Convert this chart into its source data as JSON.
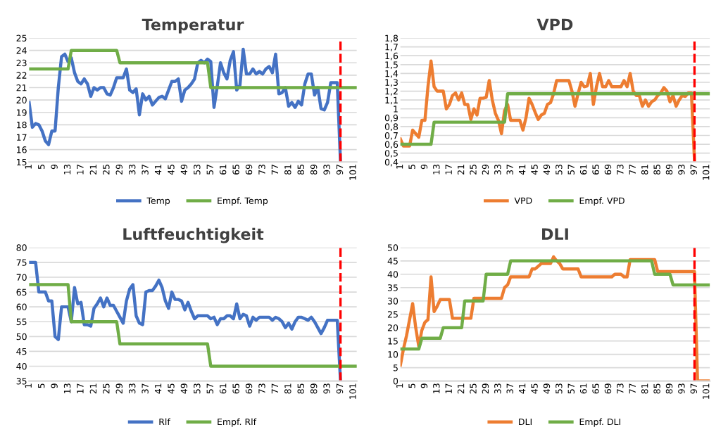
{
  "chart_data": [
    {
      "type": "line",
      "title": "Temperatur",
      "grid": "y",
      "legend": "bottom",
      "categories": [
        "1",
        null,
        null,
        null,
        "5",
        null,
        null,
        null,
        "9",
        null,
        null,
        null,
        "13",
        null,
        null,
        null,
        "17",
        null,
        null,
        null,
        "21",
        null,
        null,
        null,
        "25",
        null,
        null,
        null,
        "29",
        null,
        null,
        null,
        "33",
        null,
        null,
        null,
        "37",
        null,
        null,
        null,
        "41",
        null,
        null,
        null,
        "45",
        null,
        null,
        null,
        "49",
        null,
        null,
        null,
        "53",
        null,
        null,
        null,
        "57",
        null,
        null,
        null,
        "61",
        null,
        null,
        null,
        "65",
        null,
        null,
        null,
        "69",
        null,
        null,
        null,
        "73",
        null,
        null,
        null,
        "77",
        null,
        null,
        null,
        "81",
        null,
        null,
        null,
        "85",
        null,
        null,
        null,
        "89",
        null,
        null,
        null,
        "93",
        null,
        null,
        null,
        "97",
        null,
        null,
        null,
        "101",
        null
      ],
      "ylim": [
        15,
        25
      ],
      "yticks": [
        15,
        16,
        17,
        18,
        19,
        20,
        21,
        22,
        23,
        24,
        25
      ],
      "ref_lines": [
        {
          "axis": "x",
          "value": "97",
          "color": "#ff0000",
          "line_style": "dashed"
        }
      ],
      "series": [
        {
          "name": "Temp",
          "color": "#4472c4",
          "values": [
            19.8,
            17.8,
            18.1,
            18.0,
            17.5,
            16.7,
            16.4,
            17.5,
            17.5,
            21,
            23.5,
            23.7,
            23.1,
            23.4,
            22.2,
            21.5,
            21.3,
            21.7,
            21.3,
            20.3,
            21.0,
            20.8,
            21.0,
            21.0,
            20.5,
            20.4,
            21.0,
            21.8,
            21.8,
            21.8,
            22.5,
            20.8,
            20.6,
            20.9,
            18.8,
            20.5,
            20.0,
            20.3,
            19.6,
            19.9,
            20.2,
            20.3,
            20.1,
            20.8,
            21.5,
            21.5,
            21.7,
            19.9,
            20.8,
            21.0,
            21.3,
            21.7,
            23.0,
            23.2,
            23.0,
            23.3,
            23.1,
            19.4,
            21.1,
            23.0,
            22.2,
            21.7,
            23.2,
            23.9,
            20.8,
            21.2,
            24.1,
            22.1,
            22.1,
            22.5,
            22.1,
            22.3,
            22.1,
            22.5,
            22.7,
            22.2,
            23.7,
            20.5,
            20.6,
            21.0,
            19.5,
            19.8,
            19.4,
            19.9,
            19.6,
            21.3,
            22.1,
            22.1,
            20.4,
            21.0,
            19.3,
            19.2,
            19.8,
            21.4,
            21.4,
            21.4,
            15.0,
            null,
            null,
            null,
            null,
            null
          ]
        },
        {
          "name": "Empf. Temp",
          "color": "#70ad47",
          "values": [
            22.5,
            22.5,
            22.5,
            22.5,
            22.5,
            22.5,
            22.5,
            22.5,
            22.5,
            22.5,
            22.5,
            22.5,
            22.5,
            24,
            24,
            24,
            24,
            24,
            24,
            24,
            24,
            24,
            24,
            24,
            24,
            24,
            24,
            24,
            23,
            23,
            23,
            23,
            23,
            23,
            23,
            23,
            23,
            23,
            23,
            23,
            23,
            23,
            23,
            23,
            23,
            23,
            23,
            23,
            23,
            23,
            23,
            23,
            23,
            23,
            23,
            23,
            21,
            21,
            21,
            21,
            21,
            21,
            21,
            21,
            21,
            21,
            21,
            21,
            21,
            21,
            21,
            21,
            21,
            21,
            21,
            21,
            21,
            21,
            21,
            21,
            21,
            21,
            21,
            21,
            21,
            21,
            21,
            21,
            21,
            21,
            21,
            21,
            21,
            21,
            21,
            21,
            21,
            21,
            21,
            21,
            21,
            21
          ]
        }
      ]
    },
    {
      "type": "line",
      "title": "VPD",
      "grid": "y",
      "legend": "bottom",
      "categories": [
        "1",
        null,
        null,
        null,
        "5",
        null,
        null,
        null,
        "9",
        null,
        null,
        null,
        "13",
        null,
        null,
        null,
        "17",
        null,
        null,
        null,
        "21",
        null,
        null,
        null,
        "25",
        null,
        null,
        null,
        "29",
        null,
        null,
        null,
        "33",
        null,
        null,
        null,
        "37",
        null,
        null,
        null,
        "41",
        null,
        null,
        null,
        "45",
        null,
        null,
        null,
        "49",
        null,
        null,
        null,
        "53",
        null,
        null,
        null,
        "57",
        null,
        null,
        null,
        "61",
        null,
        null,
        null,
        "65",
        null,
        null,
        null,
        "69",
        null,
        null,
        null,
        "73",
        null,
        null,
        null,
        "77",
        null,
        null,
        null,
        "81",
        null,
        null,
        null,
        "85",
        null,
        null,
        null,
        "89",
        null,
        null,
        null,
        "93",
        null,
        null,
        null,
        "97",
        null,
        null,
        null,
        "101",
        null
      ],
      "ylim": [
        0.4,
        1.8
      ],
      "yticks": [
        {
          "value": 0.4,
          "label": "0,4"
        },
        {
          "value": 0.5,
          "label": "0,5"
        },
        {
          "value": 0.6,
          "label": "0,6"
        },
        {
          "value": 0.7,
          "label": "0,7"
        },
        {
          "value": 0.8,
          "label": "0,8"
        },
        {
          "value": 0.9,
          "label": "0,9"
        },
        1,
        {
          "value": 1.1,
          "label": "1,1"
        },
        {
          "value": 1.2,
          "label": "1,2"
        },
        {
          "value": 1.3,
          "label": "1,3"
        },
        {
          "value": 1.4,
          "label": "1,4"
        },
        {
          "value": 1.5,
          "label": "1,5"
        },
        {
          "value": 1.6,
          "label": "1,6"
        },
        {
          "value": 1.7,
          "label": "1,7"
        },
        {
          "value": 1.8,
          "label": "1,8"
        }
      ],
      "ref_lines": [
        {
          "axis": "x",
          "value": "97",
          "color": "#ff0000",
          "line_style": "dashed"
        }
      ],
      "series": [
        {
          "name": "VPD",
          "color": "#ed7d31",
          "values": [
            0.66,
            0.58,
            0.58,
            0.58,
            0.76,
            0.72,
            0.68,
            0.87,
            0.87,
            1.25,
            1.54,
            1.25,
            1.2,
            1.2,
            1.2,
            1.0,
            1.05,
            1.15,
            1.18,
            1.1,
            1.18,
            1.05,
            1.05,
            0.88,
            1.0,
            0.93,
            1.12,
            1.12,
            1.13,
            1.32,
            1.1,
            0.95,
            0.87,
            0.72,
            0.98,
            1.05,
            0.87,
            0.87,
            0.87,
            0.87,
            0.76,
            0.9,
            1.12,
            1.05,
            0.96,
            0.88,
            0.93,
            0.95,
            1.05,
            1.07,
            1.17,
            1.32,
            1.32,
            1.32,
            1.32,
            1.32,
            1.2,
            1.03,
            1.17,
            1.3,
            1.25,
            1.26,
            1.4,
            1.05,
            1.25,
            1.4,
            1.25,
            1.25,
            1.32,
            1.25,
            1.25,
            1.25,
            1.25,
            1.32,
            1.25,
            1.4,
            1.2,
            1.15,
            1.15,
            1.03,
            1.1,
            1.03,
            1.08,
            1.1,
            1.15,
            1.18,
            1.24,
            1.2,
            1.08,
            1.15,
            1.03,
            1.1,
            1.15,
            1.14,
            1.18,
            1.18,
            0.42,
            null,
            null,
            null,
            null,
            null
          ]
        },
        {
          "name": "Empf. VPD",
          "color": "#70ad47",
          "values": [
            0.6,
            0.6,
            0.6,
            0.6,
            0.6,
            0.6,
            0.6,
            0.6,
            0.6,
            0.6,
            0.6,
            0.85,
            0.85,
            0.85,
            0.85,
            0.85,
            0.85,
            0.85,
            0.85,
            0.85,
            0.85,
            0.85,
            0.85,
            0.85,
            0.85,
            0.85,
            0.85,
            0.85,
            0.85,
            0.85,
            0.85,
            0.85,
            0.85,
            0.85,
            0.85,
            1.17,
            1.17,
            1.17,
            1.17,
            1.17,
            1.17,
            1.17,
            1.17,
            1.17,
            1.17,
            1.17,
            1.17,
            1.17,
            1.17,
            1.17,
            1.17,
            1.17,
            1.17,
            1.17,
            1.17,
            1.17,
            1.17,
            1.17,
            1.17,
            1.17,
            1.17,
            1.17,
            1.17,
            1.17,
            1.17,
            1.17,
            1.17,
            1.17,
            1.17,
            1.17,
            1.17,
            1.17,
            1.17,
            1.17,
            1.17,
            1.17,
            1.17,
            1.17,
            1.17,
            1.17,
            1.17,
            1.17,
            1.17,
            1.17,
            1.17,
            1.17,
            1.17,
            1.17,
            1.17,
            1.17,
            1.17,
            1.17,
            1.17,
            1.17,
            1.17,
            1.17,
            1.17,
            1.17,
            1.17,
            1.17,
            1.17,
            1.17
          ]
        }
      ]
    },
    {
      "type": "line",
      "title": "Luftfeuchtigkeit",
      "grid": "y",
      "legend": "bottom",
      "categories": [
        "1",
        null,
        null,
        null,
        "5",
        null,
        null,
        null,
        "9",
        null,
        null,
        null,
        "13",
        null,
        null,
        null,
        "17",
        null,
        null,
        null,
        "21",
        null,
        null,
        null,
        "25",
        null,
        null,
        null,
        "29",
        null,
        null,
        null,
        "33",
        null,
        null,
        null,
        "37",
        null,
        null,
        null,
        "41",
        null,
        null,
        null,
        "45",
        null,
        null,
        null,
        "49",
        null,
        null,
        null,
        "53",
        null,
        null,
        null,
        "57",
        null,
        null,
        null,
        "61",
        null,
        null,
        null,
        "65",
        null,
        null,
        null,
        "69",
        null,
        null,
        null,
        "73",
        null,
        null,
        null,
        "77",
        null,
        null,
        null,
        "81",
        null,
        null,
        null,
        "85",
        null,
        null,
        null,
        "89",
        null,
        null,
        null,
        "93",
        null,
        null,
        null,
        "97",
        null,
        null,
        null,
        "101",
        null
      ],
      "ylim": [
        35,
        80
      ],
      "yticks": [
        35,
        40,
        45,
        50,
        55,
        60,
        65,
        70,
        75,
        80
      ],
      "ref_lines": [
        {
          "axis": "x",
          "value": "97",
          "color": "#ff0000",
          "line_style": "dashed"
        }
      ],
      "series": [
        {
          "name": "Rlf",
          "color": "#4472c4",
          "values": [
            75,
            75,
            75,
            65,
            65,
            65,
            62,
            62,
            50,
            49,
            60,
            60,
            60,
            55,
            66.5,
            61,
            61.5,
            54,
            54,
            53.5,
            59.5,
            61,
            63,
            60,
            63,
            60.5,
            60.5,
            58.5,
            56.5,
            54.5,
            62,
            66,
            67.5,
            57,
            54.5,
            54,
            65,
            65.5,
            65.5,
            67,
            69,
            66.5,
            62,
            59.5,
            65,
            62.5,
            62.5,
            62,
            59,
            61.5,
            58.5,
            56,
            57,
            57,
            57,
            57,
            56,
            56.5,
            54,
            56,
            56,
            57,
            57,
            56,
            61,
            56,
            57.5,
            57,
            53.5,
            56.5,
            55.5,
            56.5,
            56.5,
            56.5,
            56.5,
            55.5,
            56.5,
            56,
            55,
            53,
            54.5,
            52.5,
            55,
            56.5,
            56.5,
            56,
            55.5,
            56.5,
            55,
            53,
            51,
            53,
            55.5,
            55.5,
            55.5,
            55.5,
            35,
            null,
            null,
            null,
            null,
            null
          ]
        },
        {
          "name": "Empf. Rlf",
          "color": "#70ad47",
          "values": [
            67.5,
            67.5,
            67.5,
            67.5,
            67.5,
            67.5,
            67.5,
            67.5,
            67.5,
            67.5,
            67.5,
            67.5,
            67.5,
            55,
            55,
            55,
            55,
            55,
            55,
            55,
            55,
            55,
            55,
            55,
            55,
            55,
            55,
            55,
            47.5,
            47.5,
            47.5,
            47.5,
            47.5,
            47.5,
            47.5,
            47.5,
            47.5,
            47.5,
            47.5,
            47.5,
            47.5,
            47.5,
            47.5,
            47.5,
            47.5,
            47.5,
            47.5,
            47.5,
            47.5,
            47.5,
            47.5,
            47.5,
            47.5,
            47.5,
            47.5,
            47.5,
            40,
            40,
            40,
            40,
            40,
            40,
            40,
            40,
            40,
            40,
            40,
            40,
            40,
            40,
            40,
            40,
            40,
            40,
            40,
            40,
            40,
            40,
            40,
            40,
            40,
            40,
            40,
            40,
            40,
            40,
            40,
            40,
            40,
            40,
            40,
            40,
            40,
            40,
            40,
            40,
            40,
            40,
            40,
            40,
            40,
            40
          ]
        }
      ]
    },
    {
      "type": "line",
      "title": "DLI",
      "grid": "y",
      "legend": "bottom",
      "categories": [
        "1",
        null,
        null,
        null,
        "5",
        null,
        null,
        null,
        "9",
        null,
        null,
        null,
        "13",
        null,
        null,
        null,
        "17",
        null,
        null,
        null,
        "21",
        null,
        null,
        null,
        "25",
        null,
        null,
        null,
        "29",
        null,
        null,
        null,
        "33",
        null,
        null,
        null,
        "37",
        null,
        null,
        null,
        "41",
        null,
        null,
        null,
        "45",
        null,
        null,
        null,
        "49",
        null,
        null,
        null,
        "53",
        null,
        null,
        null,
        "57",
        null,
        null,
        null,
        "61",
        null,
        null,
        null,
        "65",
        null,
        null,
        null,
        "69",
        null,
        null,
        null,
        "73",
        null,
        null,
        null,
        "77",
        null,
        null,
        null,
        "81",
        null,
        null,
        null,
        "85",
        null,
        null,
        null,
        "89",
        null,
        null,
        null,
        "93",
        null,
        null,
        null,
        "97",
        null,
        null,
        null,
        "101",
        null
      ],
      "ylim": [
        0,
        50
      ],
      "yticks": [
        0,
        5,
        10,
        15,
        20,
        25,
        30,
        35,
        40,
        45,
        50
      ],
      "ref_lines": [
        {
          "axis": "x",
          "value": "97",
          "color": "#ff0000",
          "line_style": "dashed"
        }
      ],
      "series": [
        {
          "name": "DLI",
          "color": "#ed7d31",
          "values": [
            6,
            12,
            17,
            23,
            29,
            20,
            13,
            19,
            22,
            23,
            39,
            26,
            28,
            30.5,
            30.5,
            30.5,
            30.5,
            23.5,
            23.5,
            23.5,
            23.5,
            23.5,
            23.5,
            23.5,
            31,
            31,
            31,
            31,
            31,
            31,
            31,
            31,
            31,
            31,
            35,
            36,
            39,
            39,
            39,
            39,
            39,
            39,
            39,
            42,
            42,
            43,
            44,
            44,
            44,
            44,
            46.5,
            45,
            44,
            42,
            42,
            42,
            42,
            42,
            42,
            39,
            39,
            39,
            39,
            39,
            39,
            39,
            39,
            39,
            39,
            39,
            40,
            40,
            40,
            39,
            39,
            45.5,
            45.5,
            45.5,
            45.5,
            45.5,
            45.5,
            45.5,
            45.5,
            45.5,
            41,
            41,
            41,
            41,
            41,
            41,
            41,
            41,
            41,
            41,
            41,
            41,
            41,
            0,
            0,
            0,
            0,
            0
          ]
        },
        {
          "name": "Empf. DLI",
          "color": "#70ad47",
          "values": [
            12,
            12,
            12,
            12,
            12,
            12,
            12,
            16,
            16,
            16,
            16,
            16,
            16,
            16,
            20,
            20,
            20,
            20,
            20,
            20,
            20,
            30,
            30,
            30,
            30,
            30,
            30,
            30,
            40,
            40,
            40,
            40,
            40,
            40,
            40,
            40,
            45,
            45,
            45,
            45,
            45,
            45,
            45,
            45,
            45,
            45,
            45,
            45,
            45,
            45,
            45,
            45,
            45,
            45,
            45,
            45,
            45,
            45,
            45,
            45,
            45,
            45,
            45,
            45,
            45,
            45,
            45,
            45,
            45,
            45,
            45,
            45,
            45,
            45,
            45,
            45,
            45,
            45,
            45,
            45,
            45,
            45,
            45,
            40,
            40,
            40,
            40,
            40,
            40,
            36,
            36,
            36,
            36,
            36,
            36,
            36,
            36,
            36,
            36,
            36,
            36,
            36
          ]
        }
      ]
    }
  ]
}
